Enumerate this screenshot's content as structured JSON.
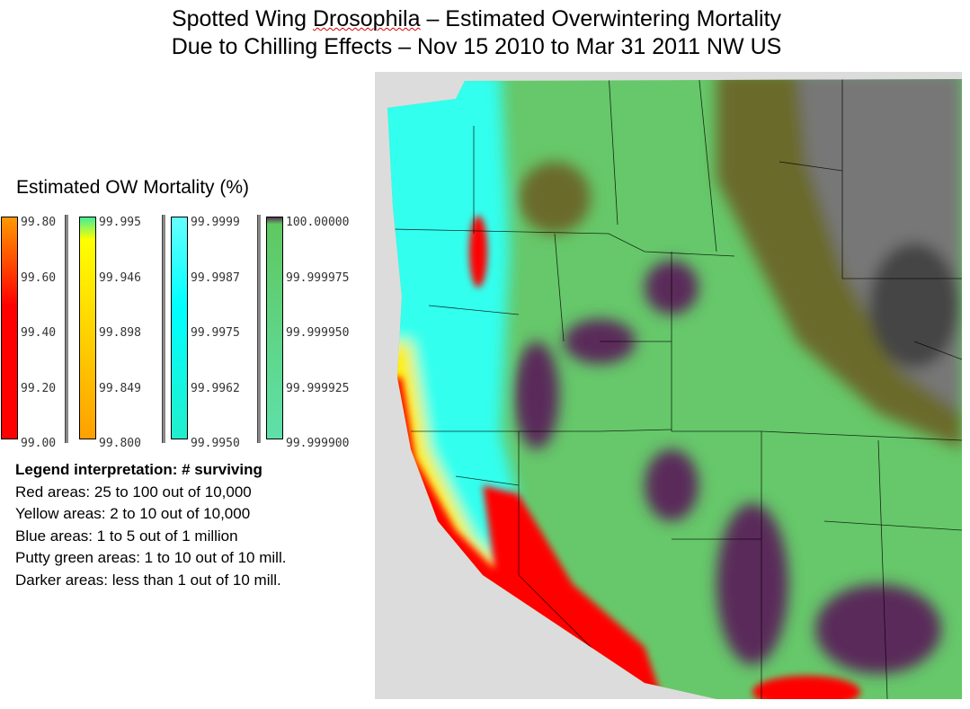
{
  "title": {
    "line1_pre": "Spotted Wing ",
    "line1_word": "Drosophila",
    "line1_post": " – Estimated Overwintering Mortality",
    "line2": "Due to Chilling Effects – Nov 15 2010 to Mar 31 2011 NW US"
  },
  "legend": {
    "title": "Estimated OW Mortality (%)",
    "scales": [
      {
        "name": "red",
        "ticks": [
          "99.80",
          "99.60",
          "99.40",
          "99.20",
          "99.00"
        ],
        "colors": [
          "#ff9900",
          "#ff0000",
          "#ff0000"
        ]
      },
      {
        "name": "yellow",
        "ticks": [
          "99.995",
          "99.946",
          "99.898",
          "99.849",
          "99.800"
        ],
        "colors": [
          "#44ee99",
          "#ffff00",
          "#ffa000"
        ]
      },
      {
        "name": "blue",
        "ticks": [
          "99.9999",
          "99.9987",
          "99.9975",
          "99.9962",
          "99.9950"
        ],
        "colors": [
          "#66ffff",
          "#00ffff",
          "#22eecc"
        ]
      },
      {
        "name": "green",
        "ticks": [
          "100.00000",
          "99.999975",
          "99.999950",
          "99.999925",
          "99.999900"
        ],
        "colors": [
          "#553355",
          "#5fc860",
          "#5fe0aa"
        ]
      }
    ]
  },
  "interpretation": {
    "heading": "Legend interpretation: # surviving",
    "lines": [
      "Red areas: 25 to 100 out of 10,000",
      "Yellow areas: 2 to 10 out of 10,000",
      "Blue areas: 1 to 5 out of 1 million",
      "Putty green areas: 1 to 10 out of 10 mill.",
      "Darker areas: less than 1 out of 10 mill."
    ]
  },
  "map": {
    "region": "NW US",
    "colors": {
      "ocean": "#dcdcdc",
      "red": "#ff0000",
      "yellow": "#ffee00",
      "cyan": "#33ffee",
      "green": "#66c86a",
      "purple": "#5a2a5a",
      "olive": "#6b6a2a",
      "gray": "#777777"
    }
  }
}
